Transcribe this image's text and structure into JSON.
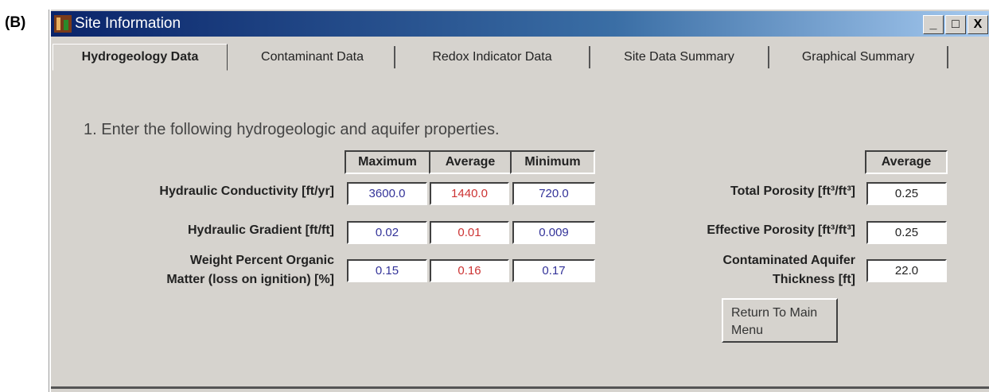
{
  "figure_label": "(B)",
  "window": {
    "title": "Site Information",
    "tabs": [
      "Hydrogeology Data",
      "Contaminant Data",
      "Redox Indicator Data",
      "Site Data Summary",
      "Graphical Summary"
    ],
    "instruction": "1. Enter the following hydrogeologic and aquifer properties.",
    "left_table": {
      "headers": [
        "Maximum",
        "Average",
        "Minimum"
      ],
      "rows": [
        {
          "label": [
            "Hydraulic Conductivity [ft/yr]"
          ],
          "values": [
            "3600.0",
            "1440.0",
            "720.0"
          ]
        },
        {
          "label": [
            "Hydraulic Gradient [ft/ft]"
          ],
          "values": [
            "0.02",
            "0.01",
            "0.009"
          ]
        },
        {
          "label": [
            "Weight Percent Organic",
            "Matter (loss on ignition) [%]"
          ],
          "values": [
            "0.15",
            "0.16",
            "0.17"
          ]
        }
      ]
    },
    "right_table": {
      "header": "Average",
      "rows": [
        {
          "label": [
            "Total Porosity [ft³/ft³]"
          ],
          "value": "0.25"
        },
        {
          "label": [
            "Effective Porosity [ft³/ft³]"
          ],
          "value": "0.25"
        },
        {
          "label": [
            "Contaminated Aquifer",
            "Thickness [ft]"
          ],
          "value": "22.0"
        }
      ]
    },
    "button": [
      "Return To Main",
      "Menu"
    ]
  }
}
